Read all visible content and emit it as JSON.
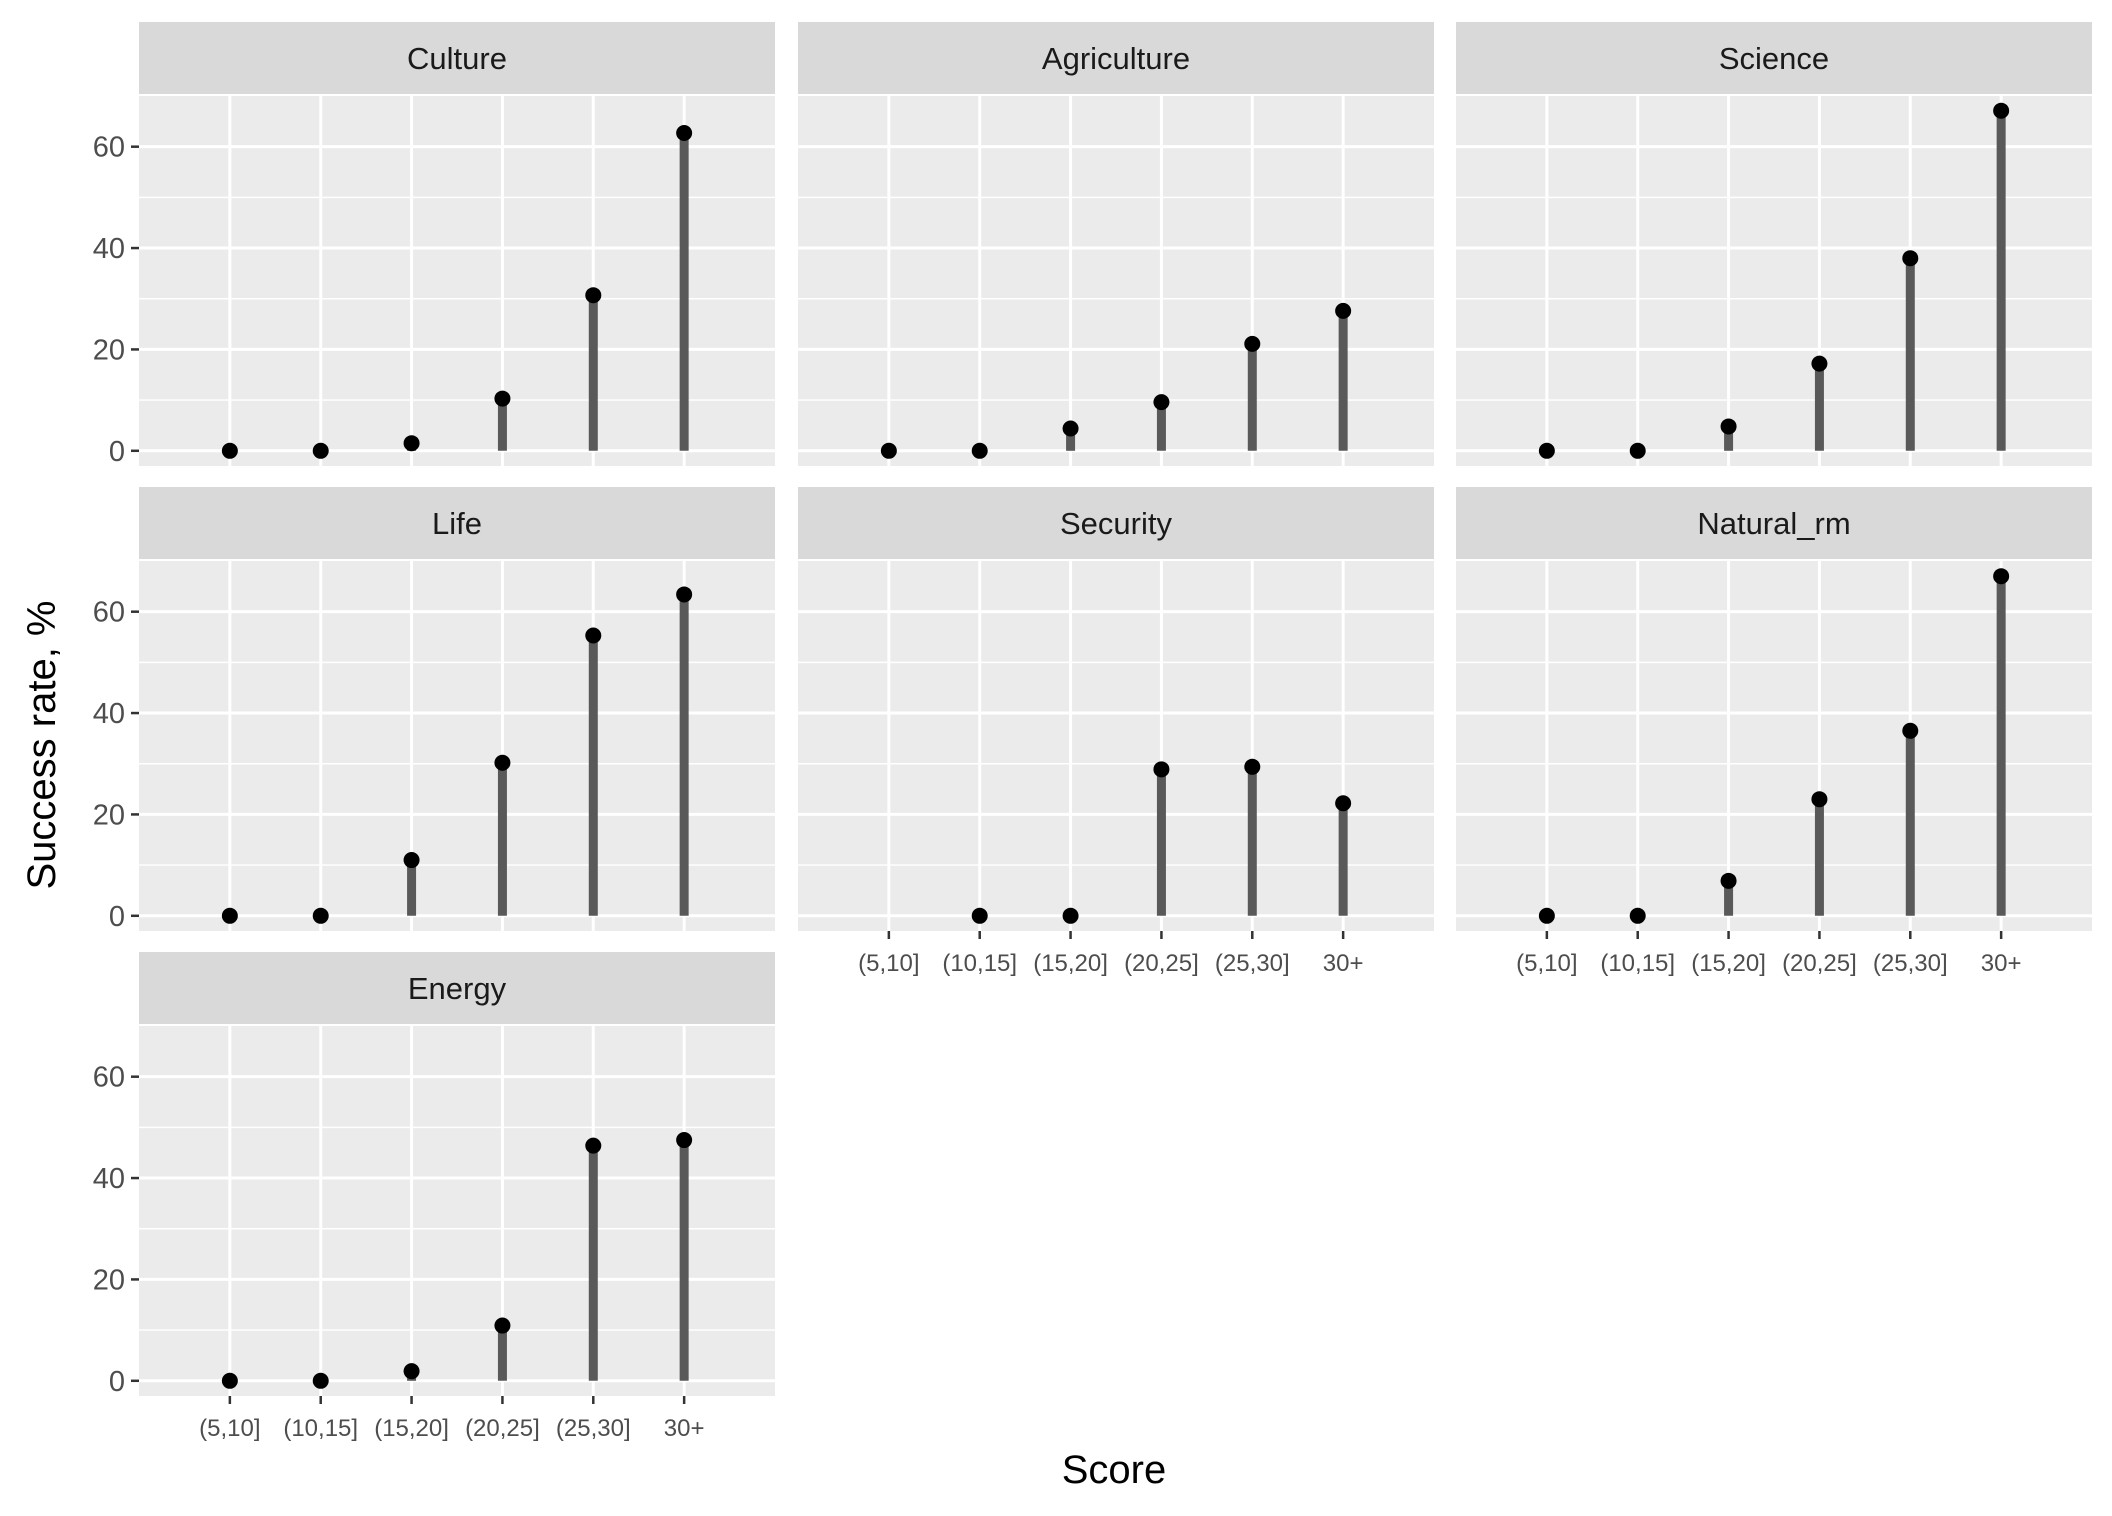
{
  "chart_data": {
    "type": "lollipop",
    "xlabel": "Score",
    "ylabel": "Success rate, %",
    "ylim": [
      -3,
      70
    ],
    "yticks": [
      0,
      20,
      40,
      60
    ],
    "categories": [
      "(5,10]",
      "(10,15]",
      "(15,20]",
      "(20,25]",
      "(25,30]",
      "30+"
    ],
    "layout": "facet-wrap-3-columns",
    "grid": true,
    "colors": {
      "panel_bg": "#ebebeb",
      "strip_bg": "#d9d9d9",
      "grid": "#ffffff",
      "stem": "#595959",
      "point": "#000000"
    },
    "panels": [
      {
        "name": "Culture",
        "values": [
          0,
          0,
          1.5,
          10.3,
          30.7,
          62.7
        ]
      },
      {
        "name": "Agriculture",
        "values": [
          0,
          0,
          4.4,
          9.6,
          21.1,
          27.6
        ]
      },
      {
        "name": "Science",
        "values": [
          0,
          0,
          4.8,
          17.2,
          38.0,
          67.1
        ]
      },
      {
        "name": "Life",
        "values": [
          0,
          0,
          11.0,
          30.2,
          55.3,
          63.4
        ]
      },
      {
        "name": "Security",
        "values": [
          null,
          0,
          0,
          28.9,
          29.4,
          22.2
        ]
      },
      {
        "name": "Natural_rm",
        "values": [
          0,
          0,
          6.9,
          23.0,
          36.5,
          67.0
        ]
      },
      {
        "name": "Energy",
        "values": [
          0,
          0,
          1.9,
          10.9,
          46.4,
          47.5
        ]
      }
    ]
  }
}
